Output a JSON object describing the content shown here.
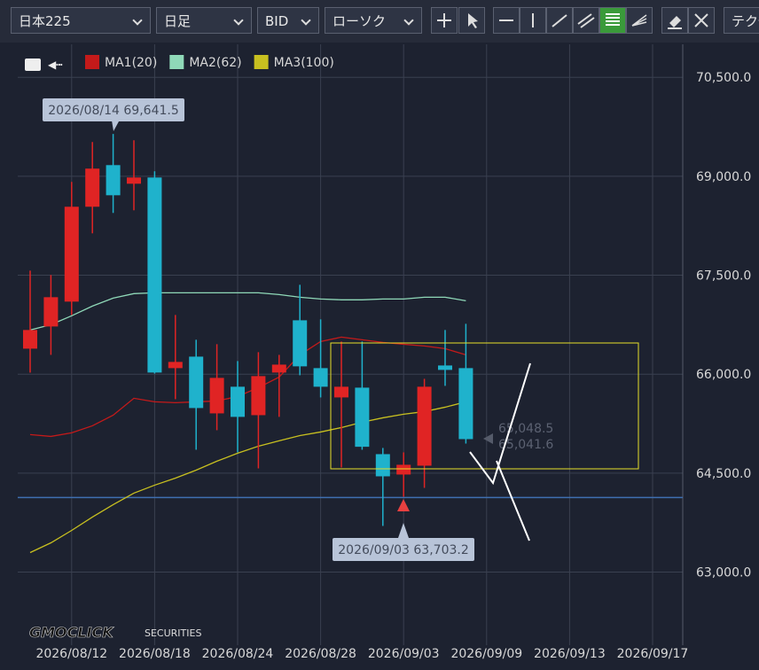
{
  "toolbar": {
    "symbol": "日本225",
    "period": "日足",
    "side": "BID",
    "style": "ローソク",
    "tech": "テク"
  },
  "brand": {
    "logo": "GMOCLICK",
    "sub": "SECURITIES"
  },
  "chart_data": {
    "type": "candlestick",
    "categories": [
      null,
      null,
      "2026/08/12",
      null,
      null,
      null,
      "2026/08/18",
      null,
      null,
      null,
      "2026/08/24",
      null,
      null,
      null,
      "2026/08/28",
      null,
      null,
      null,
      "2026/09/03",
      null,
      null,
      null,
      "2026/09/09",
      null,
      null,
      null,
      "2026/09/13",
      null,
      null,
      null,
      "2026/09/17",
      null
    ],
    "open": [
      66387,
      66723,
      67100,
      68538,
      69169,
      68887,
      68981,
      66092,
      66266,
      65406,
      65810,
      65379,
      66025,
      66817,
      66092,
      65648,
      65796,
      64788,
      64479,
      64613,
      66132,
      66092,
      null,
      null,
      null,
      null,
      null,
      null,
      null,
      null,
      null,
      null
    ],
    "high": [
      67570,
      67503,
      68914,
      69519,
      69641.5,
      69546,
      69075,
      66898,
      66522,
      66455,
      66199,
      66334,
      66293,
      67355,
      66831,
      66495,
      66495,
      64882,
      64815,
      65930,
      66670,
      66764,
      null,
      null,
      null,
      null,
      null,
      null,
      null,
      null,
      null,
      null
    ],
    "low": [
      66024,
      66293,
      66898,
      68135,
      68444,
      68484,
      66010,
      65621,
      64855,
      65151,
      64815,
      64573,
      65353,
      65984,
      65648,
      64586,
      64855,
      63700,
      64143,
      64277,
      65823,
      64949,
      null,
      null,
      null,
      null,
      null,
      null,
      null,
      null,
      null,
      null
    ],
    "close": [
      66670,
      67167,
      68538,
      69116,
      68712,
      68981,
      66025,
      66186,
      65487,
      65944,
      65353,
      65971,
      66145,
      66119,
      65810,
      65810,
      64900,
      64452,
      64627,
      65810,
      66065,
      65016,
      null,
      null,
      null,
      null,
      null,
      null,
      null,
      null,
      null,
      null
    ],
    "up_color": "#e02424",
    "down_color": "#1fb2cc",
    "series": [
      {
        "name": "MA1(20)",
        "color": "#c41a1a",
        "values": [
          65084,
          65057,
          65111,
          65218,
          65379,
          65635,
          65581,
          65568,
          65581,
          65594,
          65662,
          65796,
          65957,
          66293,
          66495,
          66562,
          66522,
          66481,
          66454,
          66428,
          66387,
          66293,
          null,
          null,
          null,
          null,
          null,
          null,
          null,
          null,
          null,
          null
        ]
      },
      {
        "name": "MA2(62)",
        "color": "#8fd9b8",
        "values": [
          66670,
          66750,
          66885,
          67032,
          67153,
          67221,
          67234,
          67234,
          67234,
          67234,
          67234,
          67234,
          67207,
          67167,
          67140,
          67127,
          67127,
          67140,
          67140,
          67167,
          67167,
          67113,
          null,
          null,
          null,
          null,
          null,
          null,
          null,
          null,
          null,
          null
        ]
      },
      {
        "name": "MA3(100)",
        "color": "#c8c020",
        "values": [
          63296,
          63444,
          63632,
          63834,
          64022,
          64197,
          64318,
          64425,
          64546,
          64681,
          64802,
          64909,
          64990,
          65070,
          65124,
          65191,
          65272,
          65339,
          65393,
          65433,
          65500,
          65581,
          null,
          null,
          null,
          null,
          null,
          null,
          null,
          null,
          null,
          null
        ]
      }
    ],
    "ylim": [
      62000,
      71000
    ],
    "yticks": [
      {
        "value": 63000,
        "label": "63,000.0"
      },
      {
        "value": 64500,
        "label": "64,500.0"
      },
      {
        "value": 66000,
        "label": "66,000.0"
      },
      {
        "value": 67500,
        "label": "67,500.0"
      },
      {
        "value": 69000,
        "label": "69,000.0"
      },
      {
        "value": 70500,
        "label": "70,500.0"
      }
    ],
    "grid": true,
    "hline": {
      "value": 64130,
      "color": "#3f6fb0"
    },
    "annotations": [
      "2026/08/14 69,641.5",
      "2026/09/03 63,703.2"
    ],
    "price_tags": [
      "65,048.5",
      "65,041.6"
    ]
  }
}
